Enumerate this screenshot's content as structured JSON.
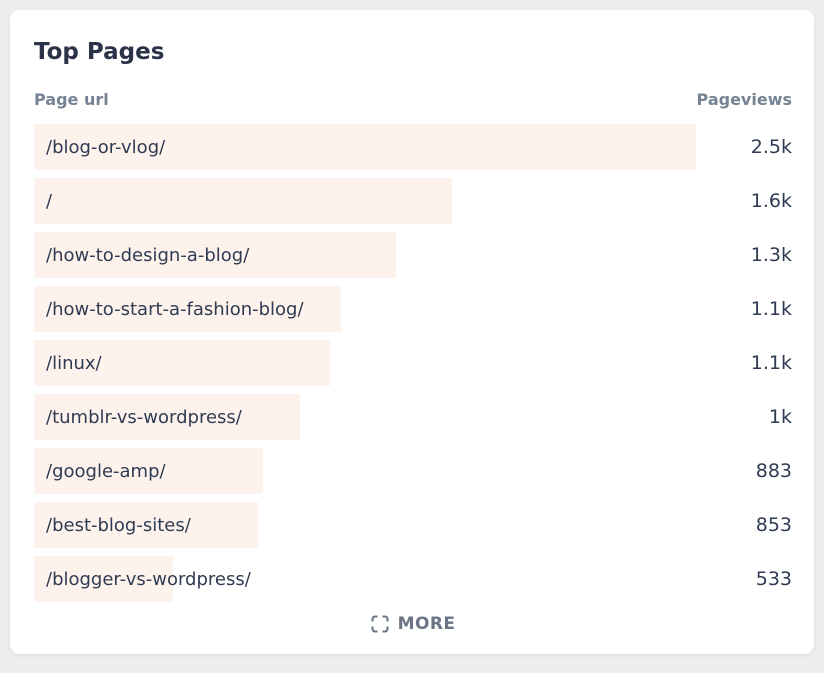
{
  "colors": {
    "page_background": "#eeeeee",
    "card_background": "#ffffff",
    "bar_fill": "#fdf3ec",
    "text_dark": "#2f3b52",
    "title_color": "#2b3349",
    "header_muted": "#768394",
    "more_color": "#6a7485"
  },
  "card": {
    "title": "Top Pages",
    "columns": {
      "page": "Page url",
      "views": "Pageviews"
    },
    "more_label": "MORE",
    "more_icon": "expand-icon"
  },
  "chart_data": {
    "type": "bar",
    "orientation": "horizontal",
    "title": "Top Pages",
    "xlabel": "Pageviews",
    "ylabel": "Page url",
    "legend": false,
    "grid": false,
    "categories": [
      "/blog-or-vlog/",
      "/",
      "/how-to-design-a-blog/",
      "/how-to-start-a-fashion-blog/",
      "/linux/",
      "/tumblr-vs-wordpress/",
      "/google-amp/",
      "/best-blog-sites/",
      "/blogger-vs-wordpress/"
    ],
    "values": [
      2500,
      1600,
      1300,
      1100,
      1100,
      1000,
      883,
      853,
      533
    ],
    "value_labels": [
      "2.5k",
      "1.6k",
      "1.3k",
      "1.1k",
      "1.1k",
      "1k",
      "883",
      "853",
      "533"
    ],
    "bar_pct": [
      87.3,
      55.1,
      47.8,
      40.5,
      39.0,
      35.1,
      30.2,
      29.6,
      18.3
    ]
  }
}
